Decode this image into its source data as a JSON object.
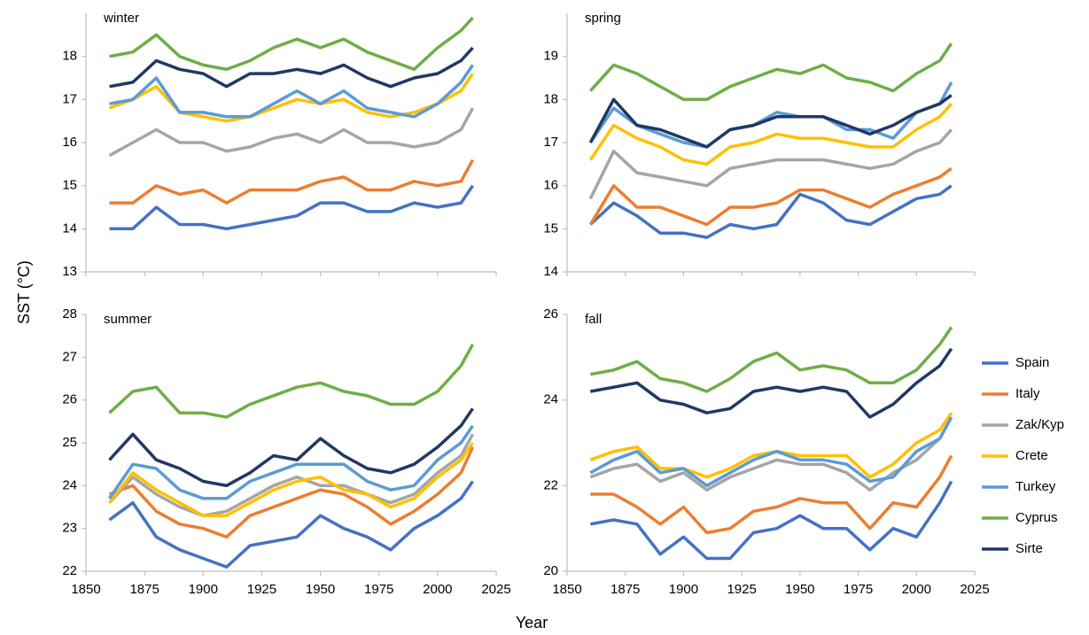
{
  "ylabel": "SST (°C)",
  "xlabel": "Year",
  "chart_data": [
    {
      "type": "line",
      "title": "winter",
      "x": [
        1860,
        1870,
        1880,
        1890,
        1900,
        1910,
        1920,
        1930,
        1940,
        1950,
        1960,
        1970,
        1980,
        1990,
        2000,
        2010,
        2015
      ],
      "xlim": [
        1850,
        2025
      ],
      "xticks": [
        1850,
        1875,
        1900,
        1925,
        1950,
        1975,
        2000,
        2025
      ],
      "show_xtick_labels": false,
      "ylim": [
        13,
        19
      ],
      "yticks": [
        13,
        14,
        15,
        16,
        17,
        18
      ],
      "series": [
        {
          "name": "Spain",
          "color": "#4472c4",
          "values": [
            14.0,
            14.0,
            14.5,
            14.1,
            14.1,
            14.0,
            14.1,
            14.2,
            14.3,
            14.6,
            14.6,
            14.4,
            14.4,
            14.6,
            14.5,
            14.6,
            15.0
          ]
        },
        {
          "name": "Italy",
          "color": "#ed7d31",
          "values": [
            14.6,
            14.6,
            15.0,
            14.8,
            14.9,
            14.6,
            14.9,
            14.9,
            14.9,
            15.1,
            15.2,
            14.9,
            14.9,
            15.1,
            15.0,
            15.1,
            15.6
          ]
        },
        {
          "name": "Zak/Kyp",
          "color": "#a5a5a5",
          "values": [
            15.7,
            16.0,
            16.3,
            16.0,
            16.0,
            15.8,
            15.9,
            16.1,
            16.2,
            16.0,
            16.3,
            16.0,
            16.0,
            15.9,
            16.0,
            16.3,
            16.8
          ]
        },
        {
          "name": "Crete",
          "color": "#ffc000",
          "values": [
            16.8,
            17.0,
            17.3,
            16.7,
            16.6,
            16.5,
            16.6,
            16.8,
            17.0,
            16.9,
            17.0,
            16.7,
            16.6,
            16.7,
            16.9,
            17.2,
            17.6
          ]
        },
        {
          "name": "Turkey",
          "color": "#5b9bd5",
          "values": [
            16.9,
            17.0,
            17.5,
            16.7,
            16.7,
            16.6,
            16.6,
            16.9,
            17.2,
            16.9,
            17.2,
            16.8,
            16.7,
            16.6,
            16.9,
            17.4,
            17.8
          ]
        },
        {
          "name": "Cyprus",
          "color": "#70ad47",
          "values": [
            18.0,
            18.1,
            18.5,
            18.0,
            17.8,
            17.7,
            17.9,
            18.2,
            18.4,
            18.2,
            18.4,
            18.1,
            17.9,
            17.7,
            18.2,
            18.6,
            18.9
          ]
        },
        {
          "name": "Sirte",
          "color": "#203864",
          "values": [
            17.3,
            17.4,
            17.9,
            17.7,
            17.6,
            17.3,
            17.6,
            17.6,
            17.7,
            17.6,
            17.8,
            17.5,
            17.3,
            17.5,
            17.6,
            17.9,
            18.2
          ]
        }
      ]
    },
    {
      "type": "line",
      "title": "spring",
      "x": [
        1860,
        1870,
        1880,
        1890,
        1900,
        1910,
        1920,
        1930,
        1940,
        1950,
        1960,
        1970,
        1980,
        1990,
        2000,
        2010,
        2015
      ],
      "xlim": [
        1850,
        2025
      ],
      "xticks": [
        1850,
        1875,
        1900,
        1925,
        1950,
        1975,
        2000,
        2025
      ],
      "show_xtick_labels": false,
      "ylim": [
        14,
        20
      ],
      "yticks": [
        14,
        15,
        16,
        17,
        18,
        19
      ],
      "series": [
        {
          "name": "Spain",
          "color": "#4472c4",
          "values": [
            15.1,
            15.6,
            15.3,
            14.9,
            14.9,
            14.8,
            15.1,
            15.0,
            15.1,
            15.8,
            15.6,
            15.2,
            15.1,
            15.4,
            15.7,
            15.8,
            16.0
          ]
        },
        {
          "name": "Italy",
          "color": "#ed7d31",
          "values": [
            15.1,
            16.0,
            15.5,
            15.5,
            15.3,
            15.1,
            15.5,
            15.5,
            15.6,
            15.9,
            15.9,
            15.7,
            15.5,
            15.8,
            16.0,
            16.2,
            16.4
          ]
        },
        {
          "name": "Zak/Kyp",
          "color": "#a5a5a5",
          "values": [
            15.7,
            16.8,
            16.3,
            16.2,
            16.1,
            16.0,
            16.4,
            16.5,
            16.6,
            16.6,
            16.6,
            16.5,
            16.4,
            16.5,
            16.8,
            17.0,
            17.3
          ]
        },
        {
          "name": "Crete",
          "color": "#ffc000",
          "values": [
            16.6,
            17.4,
            17.1,
            16.9,
            16.6,
            16.5,
            16.9,
            17.0,
            17.2,
            17.1,
            17.1,
            17.0,
            16.9,
            16.9,
            17.3,
            17.6,
            17.9
          ]
        },
        {
          "name": "Turkey",
          "color": "#5b9bd5",
          "values": [
            17.0,
            17.8,
            17.4,
            17.2,
            17.0,
            16.9,
            17.3,
            17.4,
            17.7,
            17.6,
            17.6,
            17.3,
            17.3,
            17.1,
            17.7,
            17.9,
            18.4
          ]
        },
        {
          "name": "Cyprus",
          "color": "#70ad47",
          "values": [
            18.2,
            18.8,
            18.6,
            18.3,
            18.0,
            18.0,
            18.3,
            18.5,
            18.7,
            18.6,
            18.8,
            18.5,
            18.4,
            18.2,
            18.6,
            18.9,
            19.3
          ]
        },
        {
          "name": "Sirte",
          "color": "#203864",
          "values": [
            17.0,
            18.0,
            17.4,
            17.3,
            17.1,
            16.9,
            17.3,
            17.4,
            17.6,
            17.6,
            17.6,
            17.4,
            17.2,
            17.4,
            17.7,
            17.9,
            18.1
          ]
        }
      ]
    },
    {
      "type": "line",
      "title": "summer",
      "x": [
        1860,
        1870,
        1880,
        1890,
        1900,
        1910,
        1920,
        1930,
        1940,
        1950,
        1960,
        1970,
        1980,
        1990,
        2000,
        2010,
        2015
      ],
      "xlim": [
        1850,
        2025
      ],
      "xticks": [
        1850,
        1875,
        1900,
        1925,
        1950,
        1975,
        2000,
        2025
      ],
      "show_xtick_labels": true,
      "ylim": [
        22,
        28
      ],
      "yticks": [
        22,
        23,
        24,
        25,
        26,
        27,
        28
      ],
      "series": [
        {
          "name": "Spain",
          "color": "#4472c4",
          "values": [
            23.2,
            23.6,
            22.8,
            22.5,
            22.3,
            22.1,
            22.6,
            22.7,
            22.8,
            23.3,
            23.0,
            22.8,
            22.5,
            23.0,
            23.3,
            23.7,
            24.1
          ]
        },
        {
          "name": "Italy",
          "color": "#ed7d31",
          "values": [
            23.8,
            24.0,
            23.4,
            23.1,
            23.0,
            22.8,
            23.3,
            23.5,
            23.7,
            23.9,
            23.8,
            23.5,
            23.1,
            23.4,
            23.8,
            24.3,
            24.9
          ]
        },
        {
          "name": "Zak/Kyp",
          "color": "#a5a5a5",
          "values": [
            23.6,
            24.2,
            23.8,
            23.5,
            23.3,
            23.4,
            23.7,
            24.0,
            24.2,
            24.0,
            24.0,
            23.8,
            23.6,
            23.8,
            24.3,
            24.7,
            25.2
          ]
        },
        {
          "name": "Crete",
          "color": "#ffc000",
          "values": [
            23.6,
            24.3,
            23.9,
            23.6,
            23.3,
            23.3,
            23.6,
            23.9,
            24.1,
            24.2,
            23.9,
            23.8,
            23.5,
            23.7,
            24.2,
            24.6,
            25.0
          ]
        },
        {
          "name": "Turkey",
          "color": "#5b9bd5",
          "values": [
            23.7,
            24.5,
            24.4,
            23.9,
            23.7,
            23.7,
            24.1,
            24.3,
            24.5,
            24.5,
            24.5,
            24.1,
            23.9,
            24.0,
            24.6,
            25.0,
            25.4
          ]
        },
        {
          "name": "Cyprus",
          "color": "#70ad47",
          "values": [
            25.7,
            26.2,
            26.3,
            25.7,
            25.7,
            25.6,
            25.9,
            26.1,
            26.3,
            26.4,
            26.2,
            26.1,
            25.9,
            25.9,
            26.2,
            26.8,
            27.3
          ]
        },
        {
          "name": "Sirte",
          "color": "#203864",
          "values": [
            24.6,
            25.2,
            24.6,
            24.4,
            24.1,
            24.0,
            24.3,
            24.7,
            24.6,
            25.1,
            24.7,
            24.4,
            24.3,
            24.5,
            24.9,
            25.4,
            25.8
          ]
        }
      ]
    },
    {
      "type": "line",
      "title": "fall",
      "x": [
        1860,
        1870,
        1880,
        1890,
        1900,
        1910,
        1920,
        1930,
        1940,
        1950,
        1960,
        1970,
        1980,
        1990,
        2000,
        2010,
        2015
      ],
      "xlim": [
        1850,
        2025
      ],
      "xticks": [
        1850,
        1875,
        1900,
        1925,
        1950,
        1975,
        2000,
        2025
      ],
      "show_xtick_labels": true,
      "ylim": [
        20,
        26
      ],
      "yticks": [
        20,
        22,
        24,
        26
      ],
      "legend": "right",
      "series": [
        {
          "name": "Spain",
          "color": "#4472c4",
          "values": [
            21.1,
            21.2,
            21.1,
            20.4,
            20.8,
            20.3,
            20.3,
            20.9,
            21.0,
            21.3,
            21.0,
            21.0,
            20.5,
            21.0,
            20.8,
            21.6,
            22.1
          ]
        },
        {
          "name": "Italy",
          "color": "#ed7d31",
          "values": [
            21.8,
            21.8,
            21.5,
            21.1,
            21.5,
            20.9,
            21.0,
            21.4,
            21.5,
            21.7,
            21.6,
            21.6,
            21.0,
            21.6,
            21.5,
            22.2,
            22.7
          ]
        },
        {
          "name": "Zak/Kyp",
          "color": "#a5a5a5",
          "values": [
            22.2,
            22.4,
            22.5,
            22.1,
            22.3,
            21.9,
            22.2,
            22.4,
            22.6,
            22.5,
            22.5,
            22.3,
            21.9,
            22.3,
            22.6,
            23.1,
            23.6
          ]
        },
        {
          "name": "Crete",
          "color": "#ffc000",
          "values": [
            22.6,
            22.8,
            22.9,
            22.4,
            22.4,
            22.2,
            22.4,
            22.7,
            22.8,
            22.7,
            22.7,
            22.7,
            22.2,
            22.5,
            23.0,
            23.3,
            23.7
          ]
        },
        {
          "name": "Turkey",
          "color": "#5b9bd5",
          "values": [
            22.3,
            22.6,
            22.8,
            22.3,
            22.4,
            22.0,
            22.3,
            22.6,
            22.8,
            22.6,
            22.6,
            22.5,
            22.1,
            22.2,
            22.8,
            23.1,
            23.6
          ]
        },
        {
          "name": "Cyprus",
          "color": "#70ad47",
          "values": [
            24.6,
            24.7,
            24.9,
            24.5,
            24.4,
            24.2,
            24.5,
            24.9,
            25.1,
            24.7,
            24.8,
            24.7,
            24.4,
            24.4,
            24.7,
            25.3,
            25.7
          ]
        },
        {
          "name": "Sirte",
          "color": "#203864",
          "values": [
            24.2,
            24.3,
            24.4,
            24.0,
            23.9,
            23.7,
            23.8,
            24.2,
            24.3,
            24.2,
            24.3,
            24.2,
            23.6,
            23.9,
            24.4,
            24.8,
            25.2
          ]
        }
      ]
    }
  ]
}
